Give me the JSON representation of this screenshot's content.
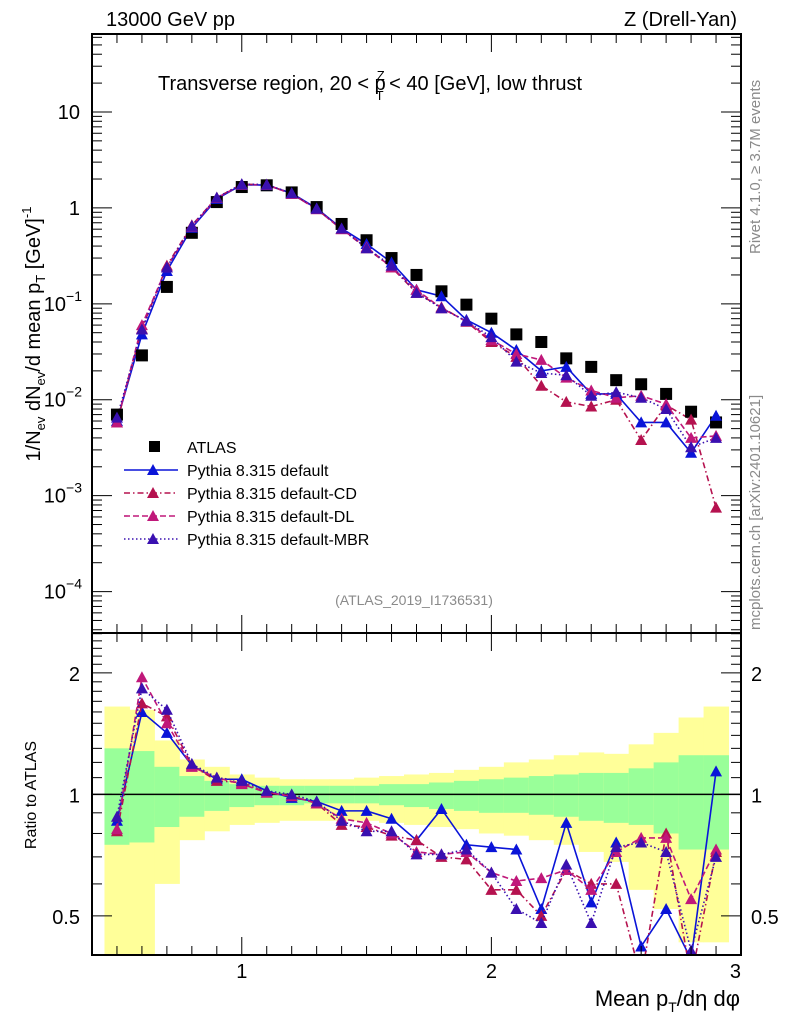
{
  "header": {
    "left": "13000 GeV pp",
    "right": "Z (Drell-Yan)"
  },
  "side_labels": {
    "rivet": "Rivet 4.1.0, ≥ 3.7M events",
    "mcplots": "mcplots.cern.ch [arXiv:2401.10621]"
  },
  "analysis_id": "(ATLAS_2019_I1736531)",
  "colors": {
    "atlas": "#000000",
    "default": "#0a14d8",
    "cd": "#b5124f",
    "dl": "#c0187a",
    "mbr": "#3a10b0",
    "band_inner": "#99ff99",
    "band_outer": "#ffff99"
  },
  "chart_data": [
    {
      "type": "scatter",
      "panel": "main",
      "title": "Transverse region, 20 < p_T^Z < 40 [GeV], low thrust",
      "title_parts": {
        "pre": "Transverse region, 20 < p",
        "sup": "Z",
        "sub": "T",
        "post": " < 40 [GeV], low thrust"
      },
      "ylabel": "1/N_ev dN_ev/d mean p_T [GeV]^-1",
      "ylabel_parts": {
        "a": "1/N",
        "a_sub": "ev",
        "b": " dN",
        "b_sub": "ev",
        "c": "/d mean p",
        "c_sub": "T",
        "d": " [GeV]",
        "d_sup": "-1"
      },
      "yscale": "log",
      "ylim": [
        3.7e-05,
        65
      ],
      "xlim": [
        0.4,
        3.0
      ],
      "grid": false,
      "legend_position": "bottom-left",
      "yticks": [
        {
          "value": 10,
          "label": "10",
          "exp": ""
        },
        {
          "value": 1,
          "label": "1",
          "exp": ""
        },
        {
          "value": 0.1,
          "label": "10",
          "exp": "−1"
        },
        {
          "value": 0.01,
          "label": "10",
          "exp": "−2"
        },
        {
          "value": 0.001,
          "label": "10",
          "exp": "−3"
        },
        {
          "value": 0.0001,
          "label": "10",
          "exp": "−4"
        }
      ],
      "x": [
        0.5,
        0.6,
        0.7,
        0.8,
        0.9,
        1.0,
        1.1,
        1.2,
        1.3,
        1.4,
        1.5,
        1.6,
        1.7,
        1.8,
        1.9,
        2.0,
        2.1,
        2.2,
        2.3,
        2.4,
        2.5,
        2.6,
        2.7,
        2.8,
        2.9
      ],
      "series": [
        {
          "name": "ATLAS",
          "key": "atlas",
          "marker": "square",
          "line": "none",
          "values": [
            0.007,
            0.029,
            0.15,
            0.55,
            1.15,
            1.65,
            1.72,
            1.45,
            1.02,
            0.68,
            0.46,
            0.3,
            0.2,
            0.135,
            0.098,
            0.07,
            0.048,
            0.04,
            0.027,
            0.022,
            0.016,
            0.0145,
            0.0115,
            0.0075,
            0.0058
          ]
        },
        {
          "name": "Pythia 8.315 default",
          "key": "default",
          "marker": "triangle",
          "line": "solid",
          "values": [
            0.006,
            0.048,
            0.22,
            0.62,
            1.24,
            1.74,
            1.73,
            1.42,
            0.99,
            0.61,
            0.42,
            0.27,
            0.14,
            0.12,
            0.068,
            0.05,
            0.033,
            0.02,
            0.022,
            0.0115,
            0.0115,
            0.0058,
            0.0058,
            0.0028,
            0.0068
          ]
        },
        {
          "name": "Pythia 8.315 default-CD",
          "key": "cd",
          "marker": "triangle",
          "line": "dashdot",
          "values": [
            0.0058,
            0.055,
            0.25,
            0.66,
            1.28,
            1.76,
            1.75,
            1.4,
            0.97,
            0.6,
            0.38,
            0.24,
            0.13,
            0.092,
            0.065,
            0.04,
            0.028,
            0.014,
            0.0095,
            0.0085,
            0.01,
            0.0038,
            0.0088,
            0.0062,
            0.00075
          ]
        },
        {
          "name": "Pythia 8.315 default-DL",
          "key": "dl",
          "marker": "triangle",
          "line": "dashed",
          "values": [
            0.0058,
            0.06,
            0.24,
            0.64,
            1.27,
            1.75,
            1.74,
            1.4,
            0.97,
            0.6,
            0.39,
            0.24,
            0.14,
            0.09,
            0.066,
            0.042,
            0.03,
            0.026,
            0.017,
            0.0125,
            0.0105,
            0.011,
            0.009,
            0.004,
            0.0042
          ]
        },
        {
          "name": "Pythia 8.315 default-MBR",
          "key": "mbr",
          "marker": "triangle",
          "line": "dotted",
          "values": [
            0.0065,
            0.054,
            0.24,
            0.65,
            1.28,
            1.77,
            1.75,
            1.42,
            0.98,
            0.61,
            0.38,
            0.25,
            0.13,
            0.09,
            0.066,
            0.045,
            0.025,
            0.019,
            0.018,
            0.011,
            0.012,
            0.0105,
            0.008,
            0.0032,
            0.004
          ]
        }
      ]
    },
    {
      "type": "scatter",
      "panel": "ratio",
      "ylabel": "Ratio to ATLAS",
      "xlabel": "Mean p_T/dη dφ",
      "xlabel_parts": {
        "a": "Mean p",
        "a_sub": "T",
        "b": "/dη dφ"
      },
      "yscale": "log",
      "ylim": [
        0.4,
        2.51
      ],
      "xlim": [
        0.4,
        3.0
      ],
      "xticks": [
        {
          "value": 1,
          "label": "1"
        },
        {
          "value": 2,
          "label": "2"
        },
        {
          "value": 3,
          "label": "3"
        }
      ],
      "yticks": [
        {
          "value": 2,
          "label": "2"
        },
        {
          "value": 1,
          "label": "1"
        },
        {
          "value": 0.5,
          "label": "0.5"
        }
      ],
      "x": [
        0.5,
        0.6,
        0.7,
        0.8,
        0.9,
        1.0,
        1.1,
        1.2,
        1.3,
        1.4,
        1.5,
        1.6,
        1.7,
        1.8,
        1.9,
        2.0,
        2.1,
        2.2,
        2.3,
        2.4,
        2.5,
        2.6,
        2.7,
        2.8,
        2.9
      ],
      "bands": {
        "edges": [
          0.45,
          0.55,
          0.65,
          0.75,
          0.85,
          0.95,
          1.05,
          1.15,
          1.25,
          1.35,
          1.45,
          1.55,
          1.65,
          1.75,
          1.85,
          1.95,
          2.05,
          2.15,
          2.25,
          2.35,
          2.45,
          2.55,
          2.65,
          2.75,
          2.85,
          2.95
        ],
        "inner_up": [
          1.3,
          1.28,
          1.17,
          1.11,
          1.08,
          1.06,
          1.05,
          1.05,
          1.05,
          1.05,
          1.05,
          1.06,
          1.06,
          1.07,
          1.08,
          1.09,
          1.1,
          1.11,
          1.12,
          1.13,
          1.13,
          1.16,
          1.2,
          1.25,
          1.25
        ],
        "inner_down": [
          0.75,
          0.76,
          0.83,
          0.88,
          0.91,
          0.93,
          0.94,
          0.94,
          0.95,
          0.95,
          0.95,
          0.94,
          0.93,
          0.92,
          0.91,
          0.9,
          0.9,
          0.89,
          0.88,
          0.86,
          0.85,
          0.84,
          0.8,
          0.73,
          0.73
        ],
        "outer_up": [
          1.65,
          1.62,
          1.36,
          1.22,
          1.17,
          1.12,
          1.1,
          1.09,
          1.09,
          1.09,
          1.1,
          1.11,
          1.12,
          1.13,
          1.15,
          1.17,
          1.2,
          1.22,
          1.25,
          1.27,
          1.26,
          1.33,
          1.42,
          1.55,
          1.65
        ],
        "outer_down": [
          0.36,
          0.38,
          0.6,
          0.77,
          0.81,
          0.84,
          0.85,
          0.86,
          0.86,
          0.86,
          0.86,
          0.85,
          0.84,
          0.83,
          0.82,
          0.8,
          0.79,
          0.77,
          0.75,
          0.72,
          0.68,
          0.58,
          0.52,
          0.43,
          0.43
        ]
      },
      "series": [
        {
          "name": "Pythia 8.315 default",
          "key": "default",
          "line": "solid",
          "values": [
            0.86,
            1.6,
            1.42,
            1.18,
            1.09,
            1.09,
            1.02,
            0.98,
            0.96,
            0.91,
            0.91,
            0.87,
            0.77,
            0.92,
            0.75,
            0.74,
            0.73,
            0.52,
            0.85,
            0.54,
            0.76,
            0.42,
            0.52,
            0.39,
            1.14
          ]
        },
        {
          "name": "Pythia 8.315 default-CD",
          "key": "cd",
          "line": "dashdot",
          "values": [
            0.81,
            1.68,
            1.56,
            1.18,
            1.08,
            1.07,
            1.01,
            0.99,
            0.95,
            0.84,
            0.83,
            0.79,
            0.77,
            0.7,
            0.69,
            0.58,
            0.58,
            0.5,
            0.65,
            0.6,
            0.6,
            0.35,
            0.8,
            0.35,
            0.72
          ]
        },
        {
          "name": "Pythia 8.315 default-DL",
          "key": "dl",
          "line": "dashed",
          "values": [
            0.82,
            1.95,
            1.5,
            1.17,
            1.1,
            1.06,
            1.01,
            0.99,
            0.95,
            0.87,
            0.85,
            0.8,
            0.72,
            0.71,
            0.72,
            0.64,
            0.61,
            0.62,
            0.65,
            0.58,
            0.72,
            0.78,
            0.78,
            0.55,
            0.73
          ]
        },
        {
          "name": "Pythia 8.315 default-MBR",
          "key": "mbr",
          "line": "dotted",
          "values": [
            0.88,
            1.83,
            1.62,
            1.19,
            1.1,
            1.08,
            1.02,
            1.0,
            0.96,
            0.86,
            0.81,
            0.81,
            0.71,
            0.71,
            0.73,
            0.64,
            0.52,
            0.48,
            0.67,
            0.48,
            0.74,
            0.76,
            0.72,
            0.41,
            0.7
          ]
        }
      ]
    }
  ]
}
